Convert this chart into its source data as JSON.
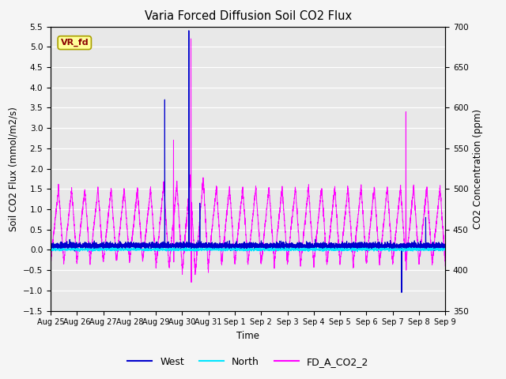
{
  "title": "Varia Forced Diffusion Soil CO2 Flux",
  "xlabel": "Time",
  "ylabel_left": "Soil CO2 Flux (mmol/m2/s)",
  "ylabel_right": "CO2 Concentration (ppm)",
  "ylim_left": [
    -1.5,
    5.5
  ],
  "ylim_right": [
    350,
    700
  ],
  "xtick_labels": [
    "Aug 25",
    "Aug 26",
    "Aug 27",
    "Aug 28",
    "Aug 29",
    "Aug 30",
    "Aug 31",
    "Sep 1",
    "Sep 2",
    "Sep 3",
    "Sep 4",
    "Sep 5",
    "Sep 6",
    "Sep 7",
    "Sep 8",
    "Sep 9"
  ],
  "color_west": "#0000cd",
  "color_north": "#00e5ff",
  "color_co2": "#ff00ff",
  "color_background": "#e8e8e8",
  "annotation_text": "VR_fd",
  "annotation_color": "#8b0000",
  "annotation_bg": "#ffff99",
  "legend_entries": [
    "West",
    "North",
    "FD_A_CO2_2"
  ],
  "figsize": [
    6.4,
    4.8
  ],
  "dpi": 100
}
